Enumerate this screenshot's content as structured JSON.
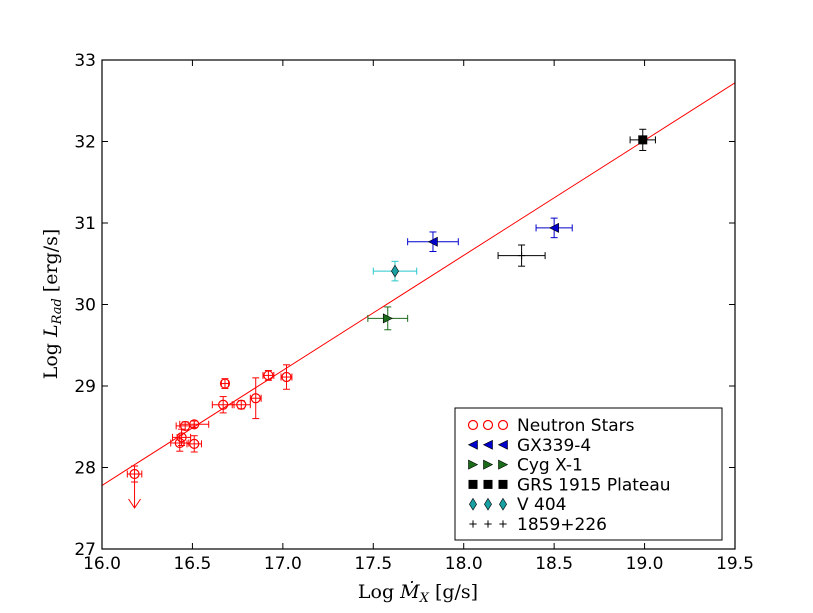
{
  "chart_data": {
    "type": "scatter",
    "title": "",
    "xlabel": {
      "prefix": "Log ",
      "symbol": "Ṁ",
      "subscript": "X",
      "unit": " [g/s]"
    },
    "ylabel": {
      "prefix": "Log ",
      "symbol": "L",
      "subscript": "Rad",
      "unit": " [erg/s]"
    },
    "xlim": [
      16.0,
      19.5
    ],
    "ylim": [
      27,
      33
    ],
    "xticks": [
      "16.0",
      "16.5",
      "17.0",
      "17.5",
      "18.0",
      "18.5",
      "19.0",
      "19.5"
    ],
    "yticks": [
      "27",
      "28",
      "29",
      "30",
      "31",
      "32",
      "33"
    ],
    "grid": false,
    "legend_position": "lower-right",
    "fit_line": {
      "color": "#ff0000",
      "from": [
        16.0,
        27.78
      ],
      "to": [
        19.5,
        32.72
      ]
    },
    "series": [
      {
        "name": "Neutron Stars",
        "marker": "circle-open",
        "color": "#ff0000",
        "points": [
          {
            "x": 16.18,
            "y": 27.92,
            "xerr": 0.04,
            "yerr": 0.1,
            "upper_limit": true
          },
          {
            "x": 16.43,
            "y": 28.3,
            "xerr": 0.05,
            "yerr": 0.1
          },
          {
            "x": 16.44,
            "y": 28.37,
            "xerr": 0.05,
            "yerr": 0.1
          },
          {
            "x": 16.46,
            "y": 28.51,
            "xerr": 0.05,
            "yerr": 0.05
          },
          {
            "x": 16.51,
            "y": 28.53,
            "xerr": 0.08,
            "yerr": 0.04
          },
          {
            "x": 16.51,
            "y": 28.29,
            "xerr": 0.04,
            "yerr": 0.1
          },
          {
            "x": 16.67,
            "y": 28.77,
            "xerr": 0.06,
            "yerr": 0.1
          },
          {
            "x": 16.68,
            "y": 29.03,
            "xerr": 0.02,
            "yerr": 0.06
          },
          {
            "x": 16.77,
            "y": 28.77,
            "xerr": 0.05,
            "yerr": 0.05
          },
          {
            "x": 16.85,
            "y": 28.85,
            "xerr": 0.03,
            "yerr": 0.25
          },
          {
            "x": 16.92,
            "y": 29.13,
            "xerr": 0.03,
            "yerr": 0.06
          },
          {
            "x": 17.02,
            "y": 29.11,
            "xerr": 0.03,
            "yerr": 0.15
          }
        ]
      },
      {
        "name": "GX339-4",
        "marker": "triangle-left",
        "color": "#0000cc",
        "points": [
          {
            "x": 17.83,
            "y": 30.77,
            "xerr": 0.14,
            "yerr": 0.12
          },
          {
            "x": 18.5,
            "y": 30.94,
            "xerr": 0.1,
            "yerr": 0.12
          }
        ]
      },
      {
        "name": "Cyg X-1",
        "marker": "triangle-right",
        "color": "#1a6b1a",
        "points": [
          {
            "x": 17.58,
            "y": 29.83,
            "xerr": 0.11,
            "yerr": 0.14
          }
        ]
      },
      {
        "name": "GRS 1915 Plateau",
        "marker": "square",
        "color": "#000000",
        "points": [
          {
            "x": 18.99,
            "y": 32.02,
            "xerr": 0.07,
            "yerr": 0.13
          }
        ]
      },
      {
        "name": "V 404",
        "marker": "diamond",
        "color": "#1a9fa3",
        "errcolor": "#29c8cc",
        "points": [
          {
            "x": 17.62,
            "y": 30.41,
            "xerr": 0.12,
            "yerr": 0.12
          }
        ]
      },
      {
        "name": "1859+226",
        "marker": "plus",
        "color": "#000000",
        "points": [
          {
            "x": 18.32,
            "y": 30.6,
            "xerr": 0.13,
            "yerr": 0.13
          }
        ]
      }
    ]
  }
}
